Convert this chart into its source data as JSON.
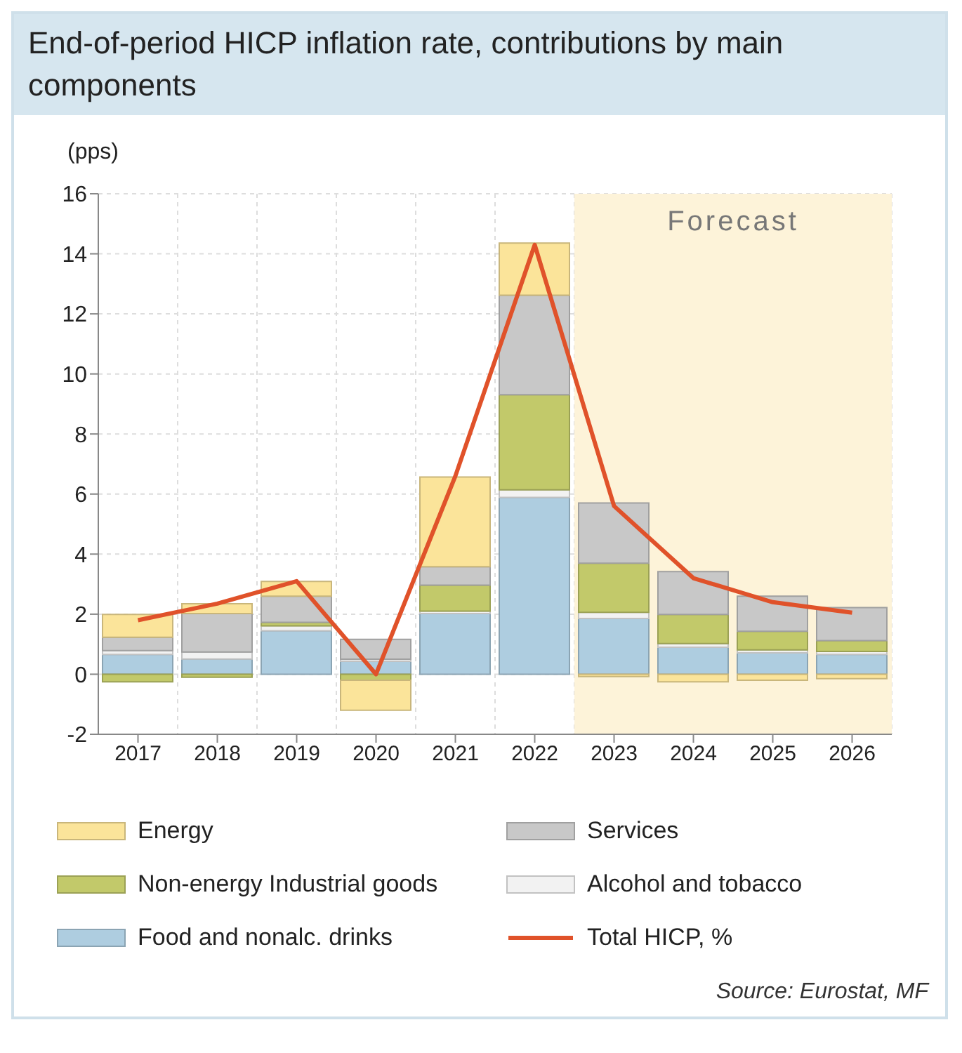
{
  "chart_data": {
    "type": "bar",
    "title": "End-of-period HICP inflation rate, contributions by main components",
    "ylabel": "(pps)",
    "categories": [
      "2017",
      "2018",
      "2019",
      "2020",
      "2021",
      "2022",
      "2023",
      "2024",
      "2025",
      "2026"
    ],
    "series": [
      {
        "name": "Food and nonalc. drinks",
        "color": "#aecde0",
        "values": [
          0.66,
          0.51,
          1.45,
          0.43,
          2.02,
          5.89,
          1.86,
          0.9,
          0.71,
          0.66
        ]
      },
      {
        "name": "Alcohol and tobacco",
        "color": "#f2f2f2",
        "values": [
          0.13,
          0.23,
          0.16,
          0.07,
          0.08,
          0.25,
          0.2,
          0.12,
          0.1,
          0.1
        ]
      },
      {
        "name": "Non-energy Industrial goods",
        "color": "#c2c96a",
        "values": [
          -0.25,
          -0.1,
          0.12,
          -0.2,
          0.87,
          3.17,
          1.64,
          0.97,
          0.62,
          0.36
        ]
      },
      {
        "name": "Services",
        "color": "#c8c8c8",
        "values": [
          0.44,
          1.28,
          0.87,
          0.66,
          0.61,
          3.31,
          2.0,
          1.43,
          1.17,
          1.1
        ]
      },
      {
        "name": "Energy",
        "color": "#fbe49a",
        "values": [
          0.76,
          0.33,
          0.49,
          -1.0,
          2.99,
          1.74,
          -0.08,
          -0.25,
          -0.2,
          -0.15
        ]
      },
      {
        "name": "Total HICP, %",
        "type": "line",
        "color": "#e0522a",
        "values": [
          1.8,
          2.35,
          3.1,
          0.0,
          6.6,
          14.3,
          5.6,
          3.2,
          2.4,
          2.05
        ]
      }
    ],
    "stacked": true,
    "ylim": [
      -2,
      16
    ],
    "yticks": [
      -2,
      0,
      2,
      4,
      6,
      8,
      10,
      12,
      14,
      16
    ],
    "grid": true,
    "legend": "bottom",
    "marker": "none",
    "line_style": "solid",
    "bands": [
      {
        "axis": "x",
        "from": "2023",
        "to": "2026",
        "label": "Forecast",
        "color": "#fdf3d9"
      }
    ],
    "annotations": [
      "Source: Eurostat, MF"
    ]
  }
}
